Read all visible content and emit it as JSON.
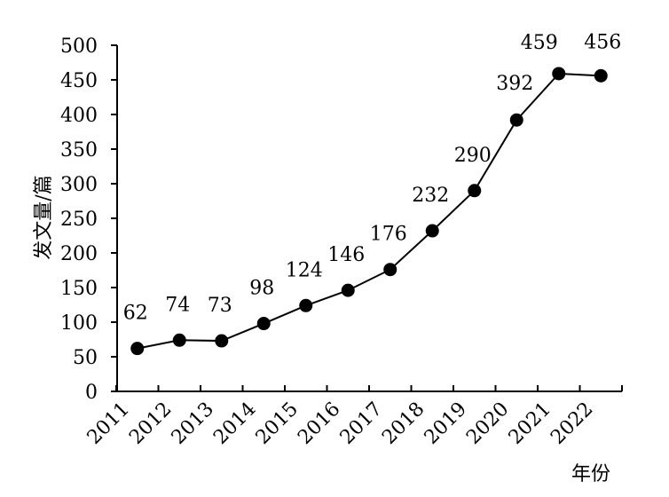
{
  "chart_data": {
    "type": "line",
    "title": "",
    "xlabel": "年份",
    "ylabel": "发文量/篇",
    "ylim": [
      0,
      500
    ],
    "y_ticks": [
      0,
      50,
      100,
      150,
      200,
      250,
      300,
      350,
      400,
      450,
      500
    ],
    "categories": [
      "2011",
      "2012",
      "2013",
      "2014",
      "2015",
      "2016",
      "2017",
      "2018",
      "2019",
      "2020",
      "2021",
      "2022"
    ],
    "series": [
      {
        "values": [
          62,
          74,
          73,
          98,
          124,
          146,
          176,
          232,
          290,
          392,
          459,
          456
        ],
        "color": "#000000",
        "marker": "filled-circle"
      }
    ],
    "data_labels": [
      "62",
      "74",
      "73",
      "98",
      "124",
      "146",
      "176",
      "232",
      "290",
      "392",
      "459",
      "456"
    ],
    "grid": false,
    "legend": "none"
  }
}
